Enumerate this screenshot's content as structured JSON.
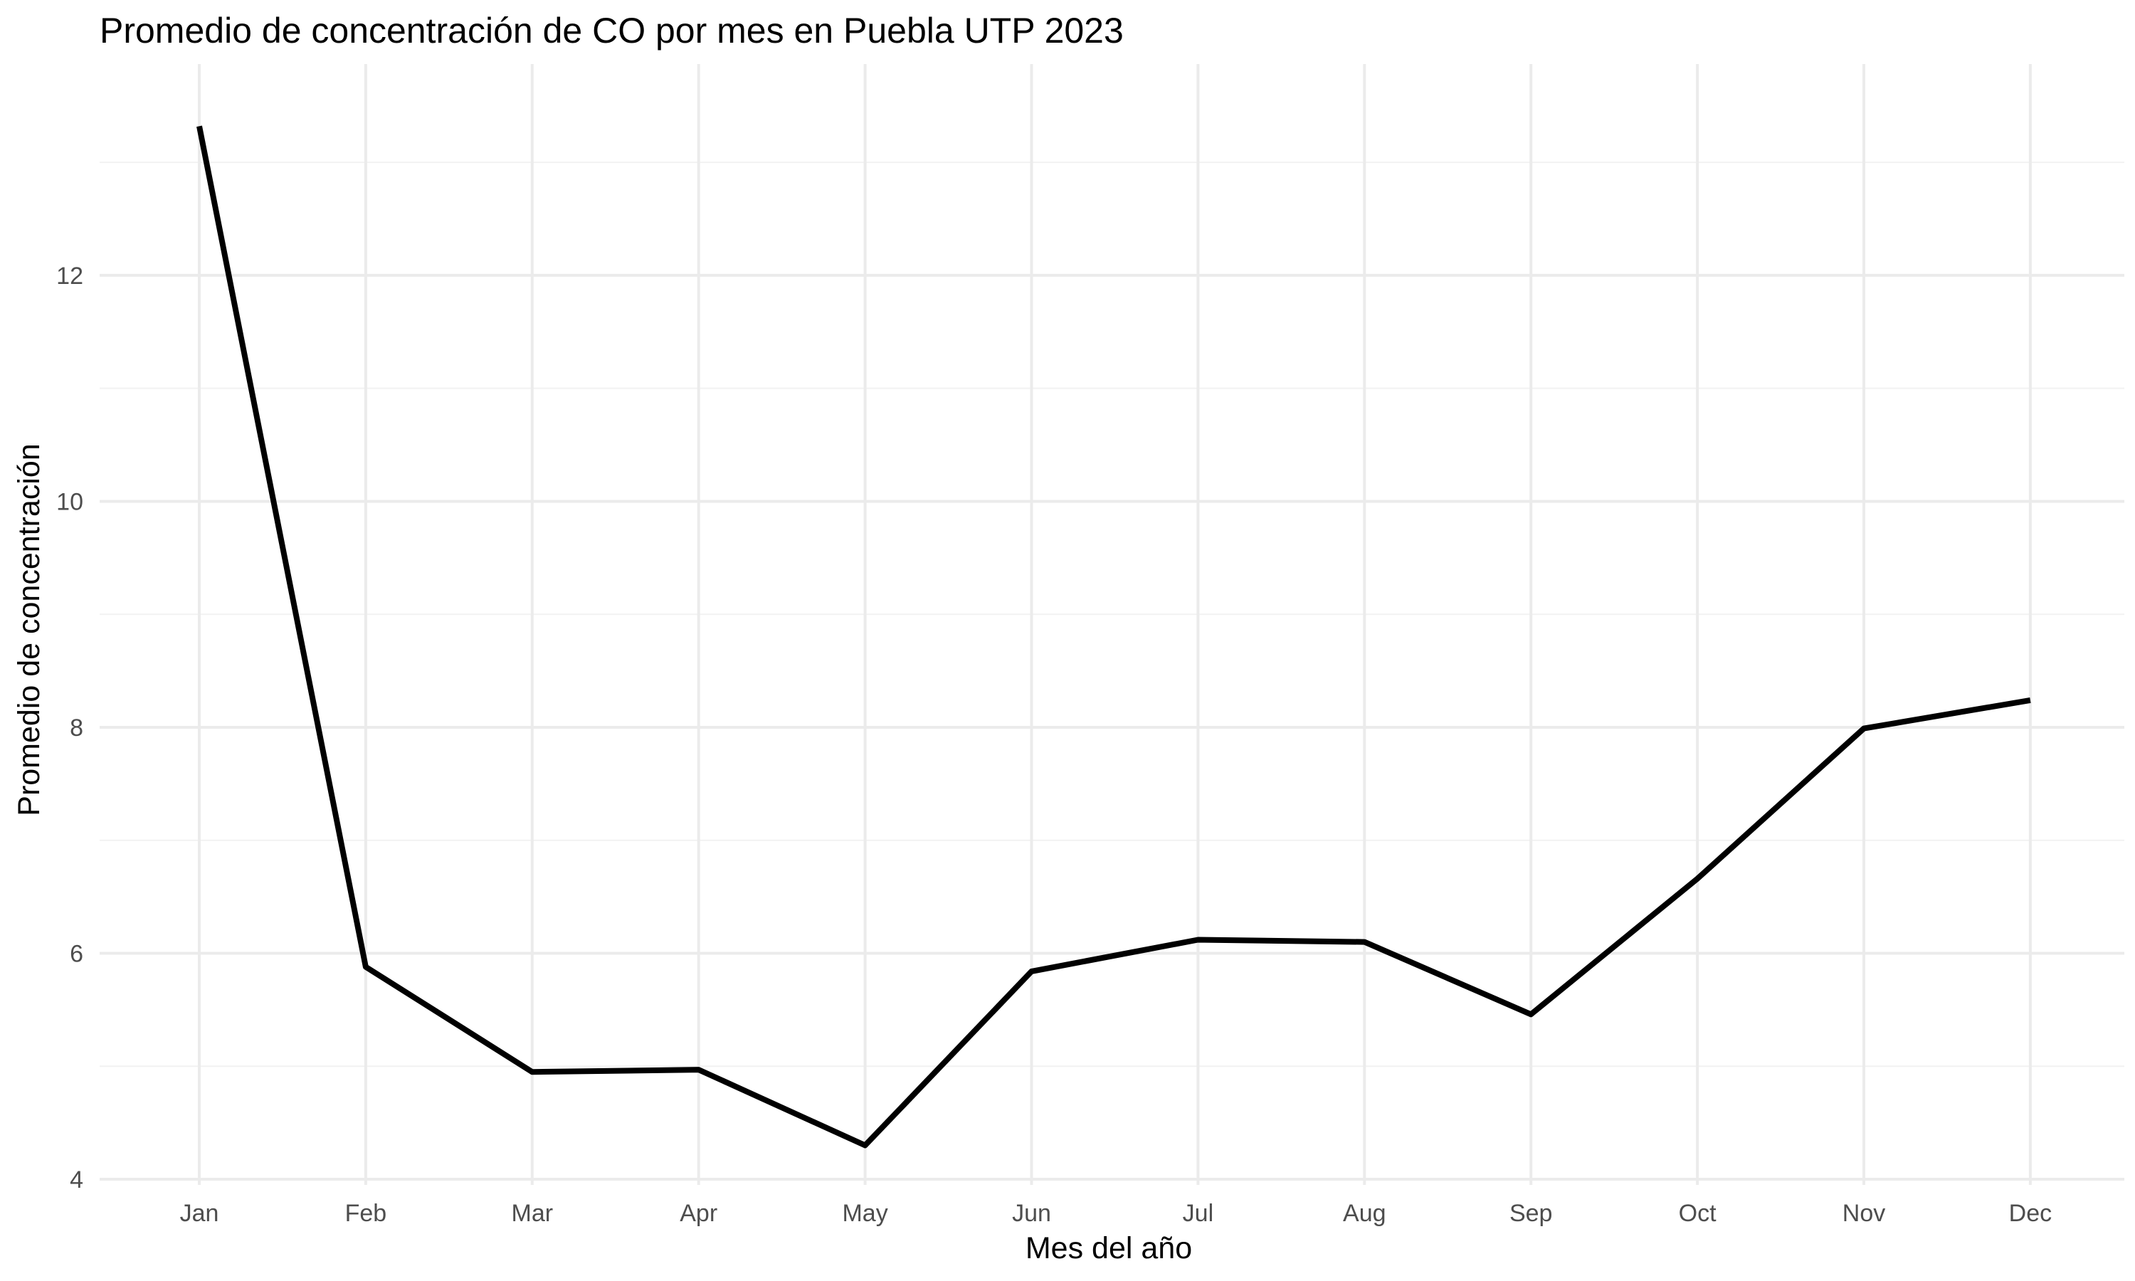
{
  "chart_data": {
    "type": "line",
    "title": "Promedio de concentración de CO por mes en Puebla UTP 2023",
    "xlabel": "Mes del año",
    "ylabel": "Promedio de concentración",
    "categories": [
      "Jan",
      "Feb",
      "Mar",
      "Apr",
      "May",
      "Jun",
      "Jul",
      "Aug",
      "Sep",
      "Oct",
      "Nov",
      "Dec"
    ],
    "series": [
      {
        "values": [
          13.32,
          5.88,
          4.95,
          4.97,
          4.3,
          5.84,
          6.12,
          6.1,
          5.46,
          6.66,
          7.99,
          8.24
        ]
      }
    ],
    "yticks": [
      4,
      6,
      8,
      10,
      12
    ],
    "ylim": [
      3.95,
      13.87
    ],
    "grid": true,
    "legend": "none",
    "colors": {
      "line": "#000000",
      "grid": "#ebebeb",
      "background": "#ffffff",
      "tick_text": "#4d4d4d"
    }
  }
}
